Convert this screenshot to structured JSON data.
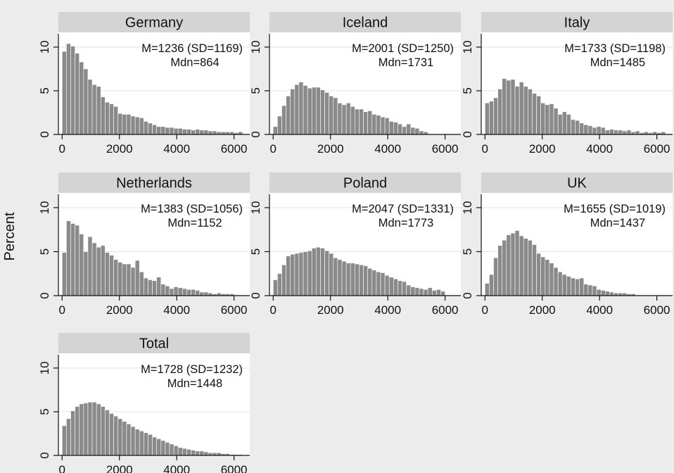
{
  "figure": {
    "ylabel": "Percent",
    "background": "#ececec",
    "strip_color": "#d4d4d4",
    "plot_bg": "#ffffff",
    "bar_color": "#8a8a8a",
    "grid_color": "#e6e6e6"
  },
  "chart_data": [
    {
      "type": "bar",
      "title": "Germany",
      "annotation": [
        "M=1236 (SD=1169)",
        "Mdn=864"
      ],
      "bin_width": 150,
      "x_start": 0,
      "values": [
        9.5,
        10.4,
        10.1,
        9.3,
        8.3,
        7.5,
        6.3,
        5.7,
        5.5,
        4.3,
        3.7,
        3.5,
        3.2,
        2.4,
        2.3,
        2.3,
        2.1,
        2.0,
        1.9,
        1.5,
        1.3,
        1.1,
        0.9,
        0.9,
        0.8,
        0.8,
        0.7,
        0.7,
        0.6,
        0.6,
        0.5,
        0.6,
        0.5,
        0.5,
        0.4,
        0.4,
        0.3,
        0.3,
        0.3,
        0.3,
        0.2,
        0.3
      ],
      "xticks": [
        0,
        2000,
        4000,
        6000
      ],
      "yticks": [
        0,
        5,
        10
      ],
      "xlim": [
        -130,
        6550
      ],
      "ylim": [
        0,
        11.2
      ]
    },
    {
      "type": "bar",
      "title": "Iceland",
      "annotation": [
        "M=2001 (SD=1250)",
        "Mdn=1731"
      ],
      "bin_width": 150,
      "x_start": 0,
      "values": [
        0.9,
        2.1,
        3.3,
        4.4,
        5.2,
        5.7,
        6.0,
        5.6,
        5.3,
        5.4,
        5.4,
        5.1,
        4.8,
        4.4,
        4.2,
        3.6,
        3.4,
        3.6,
        3.2,
        2.9,
        2.9,
        2.6,
        2.7,
        2.3,
        2.2,
        2.0,
        1.9,
        1.5,
        1.4,
        1.2,
        0.9,
        1.2,
        0.8,
        0.7,
        0.4,
        0.3
      ],
      "xticks": [
        0,
        2000,
        4000,
        6000
      ],
      "yticks": [
        0,
        5,
        10
      ],
      "xlim": [
        -130,
        6550
      ],
      "ylim": [
        0,
        11.2
      ]
    },
    {
      "type": "bar",
      "title": "Italy",
      "annotation": [
        "M=1733 (SD=1198)",
        "Mdn=1485"
      ],
      "bin_width": 150,
      "x_start": 0,
      "values": [
        3.6,
        3.8,
        4.2,
        5.2,
        6.4,
        6.2,
        6.3,
        5.5,
        6.0,
        5.5,
        5.2,
        4.7,
        4.4,
        3.6,
        3.4,
        3.5,
        3.0,
        2.3,
        2.6,
        2.3,
        1.7,
        1.6,
        1.3,
        1.1,
        1.0,
        0.8,
        0.9,
        0.8,
        0.5,
        0.6,
        0.5,
        0.5,
        0.4,
        0.5,
        0.3,
        0.4,
        0.2,
        0.3,
        0.2,
        0.3,
        0.2,
        0.3
      ],
      "xticks": [
        0,
        2000,
        4000,
        6000
      ],
      "yticks": [
        0,
        5,
        10
      ],
      "xlim": [
        -130,
        6550
      ],
      "ylim": [
        0,
        11.2
      ]
    },
    {
      "type": "bar",
      "title": "Netherlands",
      "annotation": [
        "M=1383 (SD=1056)",
        "Mdn=1152"
      ],
      "bin_width": 150,
      "x_start": 0,
      "values": [
        4.9,
        8.5,
        8.2,
        8.0,
        7.0,
        5.0,
        6.7,
        6.0,
        5.5,
        5.7,
        4.9,
        4.6,
        4.1,
        3.8,
        3.6,
        3.6,
        3.2,
        4.0,
        2.7,
        2.0,
        1.8,
        1.7,
        2.1,
        1.3,
        1.1,
        0.8,
        1.0,
        0.9,
        0.8,
        0.7,
        0.7,
        0.6,
        0.4,
        0.4,
        0.3,
        0.2,
        0.3,
        0.2,
        0.2,
        0.2
      ],
      "xticks": [
        0,
        2000,
        4000,
        6000
      ],
      "yticks": [
        0,
        5,
        10
      ],
      "xlim": [
        -130,
        6550
      ],
      "ylim": [
        0,
        11.2
      ]
    },
    {
      "type": "bar",
      "title": "Poland",
      "annotation": [
        "M=2047 (SD=1331)",
        "Mdn=1773"
      ],
      "bin_width": 150,
      "x_start": 0,
      "values": [
        1.8,
        2.5,
        3.5,
        4.5,
        4.7,
        4.8,
        4.9,
        5.0,
        5.1,
        5.4,
        5.5,
        5.4,
        5.1,
        4.8,
        4.3,
        4.1,
        3.9,
        3.7,
        3.7,
        3.6,
        3.5,
        3.4,
        3.1,
        2.9,
        2.7,
        2.6,
        2.3,
        2.1,
        1.9,
        1.7,
        1.6,
        1.2,
        1.0,
        0.9,
        0.8,
        0.7,
        0.9,
        0.6,
        0.7,
        0.5
      ],
      "xticks": [
        0,
        2000,
        4000,
        6000
      ],
      "yticks": [
        0,
        5,
        10
      ],
      "xlim": [
        -130,
        6550
      ],
      "ylim": [
        0,
        11.2
      ]
    },
    {
      "type": "bar",
      "title": "UK",
      "annotation": [
        "M=1655 (SD=1019)",
        "Mdn=1437"
      ],
      "bin_width": 150,
      "x_start": 0,
      "values": [
        1.4,
        2.4,
        4.3,
        5.7,
        6.3,
        6.9,
        7.1,
        7.4,
        6.8,
        6.5,
        6.3,
        5.8,
        4.8,
        4.4,
        4.1,
        3.7,
        3.2,
        2.7,
        2.4,
        2.2,
        2.0,
        1.9,
        2.0,
        1.3,
        1.2,
        1.1,
        0.7,
        0.6,
        0.5,
        0.4,
        0.3,
        0.3,
        0.3,
        0.2,
        0.2
      ],
      "xticks": [
        0,
        2000,
        4000,
        6000
      ],
      "yticks": [
        0,
        5,
        10
      ],
      "xlim": [
        -130,
        6550
      ],
      "ylim": [
        0,
        11.2
      ]
    },
    {
      "type": "bar",
      "title": "Total",
      "annotation": [
        "M=1728 (SD=1232)",
        "Mdn=1448"
      ],
      "bin_width": 150,
      "x_start": 0,
      "values": [
        3.4,
        4.2,
        5.1,
        5.6,
        5.9,
        6.0,
        6.1,
        6.1,
        5.9,
        5.6,
        5.2,
        4.8,
        4.5,
        4.2,
        3.9,
        3.6,
        3.3,
        3.0,
        2.8,
        2.6,
        2.4,
        2.1,
        1.9,
        1.7,
        1.5,
        1.3,
        1.1,
        0.9,
        0.8,
        0.7,
        0.6,
        0.5,
        0.5,
        0.4,
        0.3,
        0.3,
        0.3,
        0.2,
        0.2,
        0.1,
        0.1,
        0.1
      ],
      "xticks": [
        0,
        2000,
        4000,
        6000
      ],
      "yticks": [
        0,
        5,
        10
      ],
      "xlim": [
        -130,
        6550
      ],
      "ylim": [
        0,
        11.2
      ]
    }
  ]
}
